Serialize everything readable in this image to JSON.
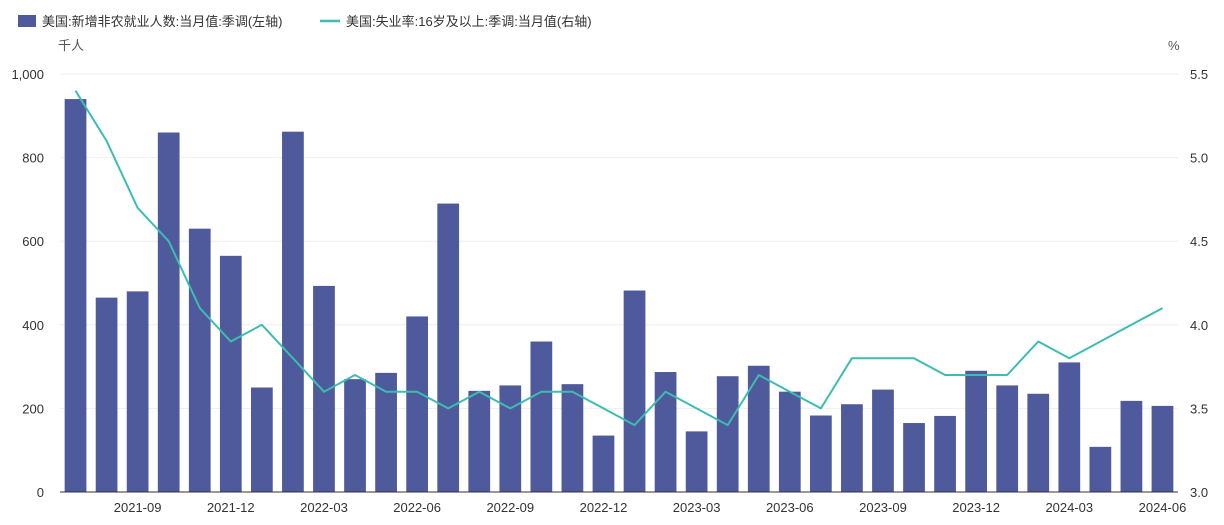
{
  "colors": {
    "bar": "#4e5a9b",
    "line": "#3dbdb0",
    "grid": "#eeeeee",
    "axis": "#333333"
  },
  "chart_data": {
    "type": "bar+line",
    "legend_position": "top-left",
    "grid": true,
    "legend": [
      {
        "label": "美国:新增非农就业人数:当月值:季调(左轴)",
        "kind": "bar"
      },
      {
        "label": "美国:失业率:16岁及以上:季调:当月值(右轴)",
        "kind": "line"
      }
    ],
    "y_left": {
      "unit": "千人",
      "min": 0,
      "max": 1000,
      "ticks": [
        0,
        200,
        400,
        600,
        800,
        1000
      ],
      "tick_labels": [
        "0",
        "200",
        "400",
        "600",
        "800",
        "1,000"
      ]
    },
    "y_right": {
      "unit": "%",
      "min": 3.0,
      "max": 5.5,
      "ticks": [
        3.0,
        3.5,
        4.0,
        4.5,
        5.0,
        5.5
      ],
      "tick_labels": [
        "3.0",
        "3.5",
        "4.0",
        "4.5",
        "5.0",
        "5.5"
      ]
    },
    "x": [
      "2021-07",
      "2021-08",
      "2021-09",
      "2021-10",
      "2021-11",
      "2021-12",
      "2022-01",
      "2022-02",
      "2022-03",
      "2022-04",
      "2022-05",
      "2022-06",
      "2022-07",
      "2022-08",
      "2022-09",
      "2022-10",
      "2022-11",
      "2022-12",
      "2023-01",
      "2023-02",
      "2023-03",
      "2023-04",
      "2023-05",
      "2023-06",
      "2023-07",
      "2023-08",
      "2023-09",
      "2023-10",
      "2023-11",
      "2023-12",
      "2024-01",
      "2024-02",
      "2024-03",
      "2024-04",
      "2024-05",
      "2024-06"
    ],
    "x_tick_labels": [
      {
        "index": 2,
        "label": "2021-09"
      },
      {
        "index": 5,
        "label": "2021-12"
      },
      {
        "index": 8,
        "label": "2022-03"
      },
      {
        "index": 11,
        "label": "2022-06"
      },
      {
        "index": 14,
        "label": "2022-09"
      },
      {
        "index": 17,
        "label": "2022-12"
      },
      {
        "index": 20,
        "label": "2023-03"
      },
      {
        "index": 23,
        "label": "2023-06"
      },
      {
        "index": 26,
        "label": "2023-09"
      },
      {
        "index": 29,
        "label": "2023-12"
      },
      {
        "index": 32,
        "label": "2024-03"
      },
      {
        "index": 35,
        "label": "2024-06"
      }
    ],
    "series": [
      {
        "name": "美国:新增非农就业人数:当月值:季调(左轴)",
        "type": "bar",
        "axis": "left",
        "values": [
          940,
          465,
          480,
          860,
          630,
          565,
          250,
          862,
          493,
          270,
          285,
          420,
          690,
          242,
          255,
          360,
          258,
          135,
          482,
          287,
          145,
          277,
          302,
          240,
          183,
          210,
          245,
          165,
          182,
          290,
          255,
          235,
          310,
          108,
          218,
          206
        ]
      },
      {
        "name": "美国:失业率:16岁及以上:季调:当月值(右轴)",
        "type": "line",
        "axis": "right",
        "values": [
          5.4,
          5.1,
          4.7,
          4.5,
          4.1,
          3.9,
          4.0,
          3.8,
          3.6,
          3.7,
          3.6,
          3.6,
          3.5,
          3.6,
          3.5,
          3.6,
          3.6,
          3.5,
          3.4,
          3.6,
          3.5,
          3.4,
          3.7,
          3.6,
          3.5,
          3.8,
          3.8,
          3.8,
          3.7,
          3.7,
          3.7,
          3.9,
          3.8,
          3.9,
          4.0,
          4.1
        ]
      }
    ]
  }
}
